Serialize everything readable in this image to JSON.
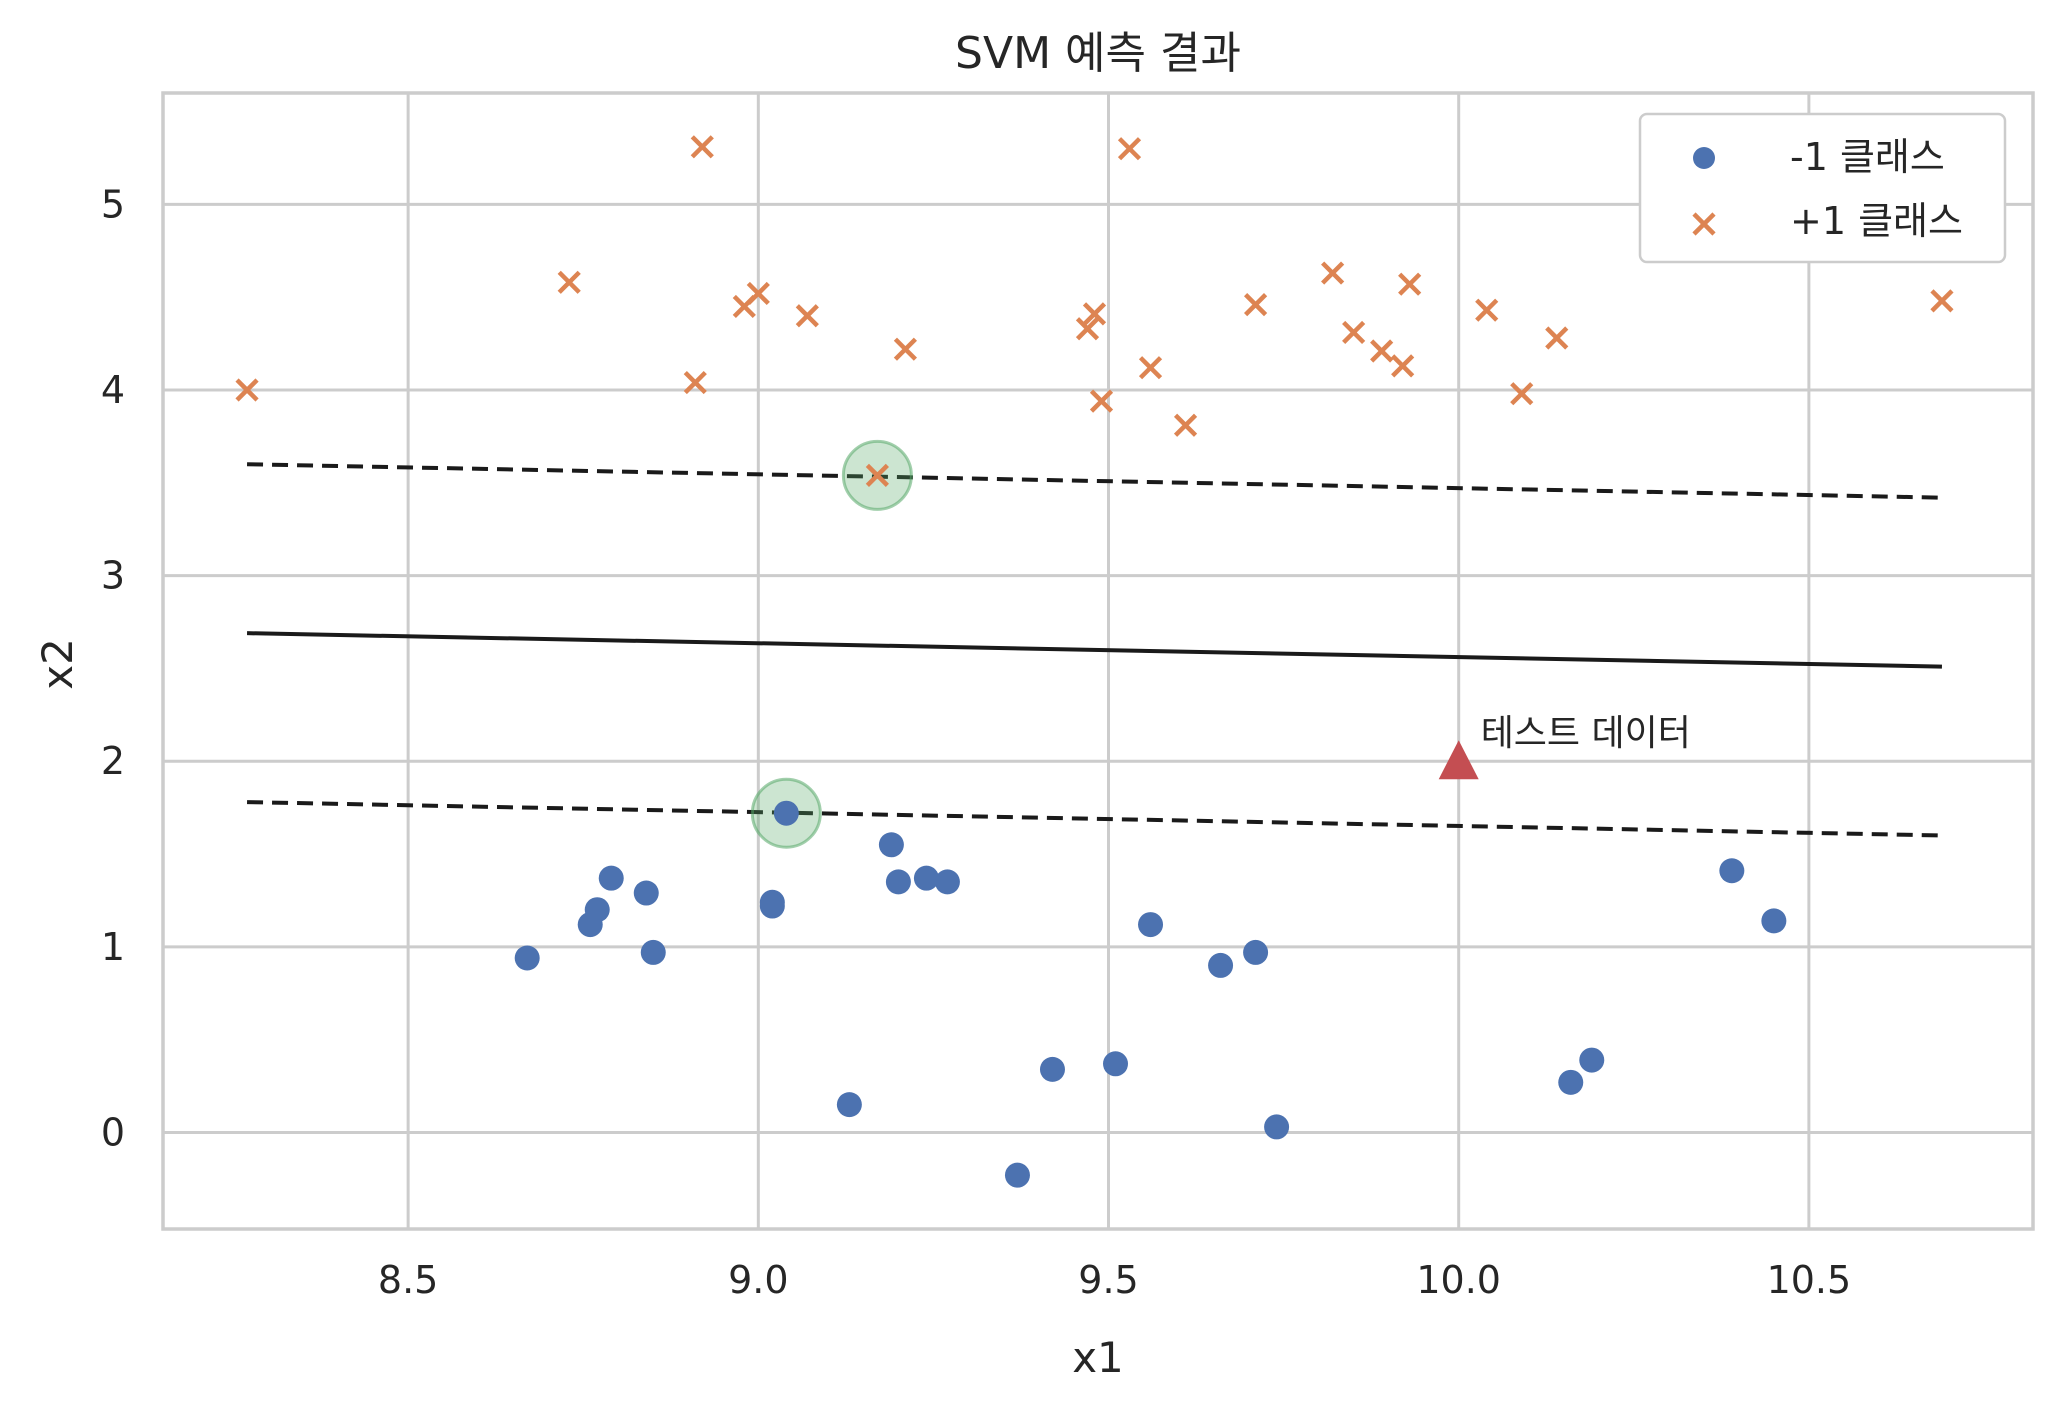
{
  "chart_data": {
    "type": "scatter",
    "title": "SVM 예측 결과",
    "xlabel": "x1",
    "ylabel": "x2",
    "xlim": [
      8.15,
      10.82
    ],
    "ylim": [
      -0.52,
      5.6
    ],
    "xticks": [
      8.5,
      9.0,
      9.5,
      10.0,
      10.5
    ],
    "xtick_labels": [
      "8.5",
      "9.0",
      "9.5",
      "10.0",
      "10.5"
    ],
    "yticks": [
      0,
      1,
      2,
      3,
      4,
      5
    ],
    "ytick_labels": [
      "0",
      "1",
      "2",
      "3",
      "4",
      "5"
    ],
    "grid": true,
    "legend_position": "upper-right",
    "colors": {
      "neg": "#4c72b0",
      "pos": "#dd8452",
      "test": "#c44e52",
      "line": "#1a1a1a",
      "sv": "#55a868"
    },
    "series": [
      {
        "name": "-1 클래스",
        "marker": "circle",
        "points": [
          [
            8.67,
            0.94
          ],
          [
            8.76,
            1.12
          ],
          [
            8.77,
            1.2
          ],
          [
            8.79,
            1.37
          ],
          [
            8.84,
            1.29
          ],
          [
            8.85,
            0.97
          ],
          [
            9.02,
            1.24
          ],
          [
            9.02,
            1.22
          ],
          [
            9.04,
            1.72
          ],
          [
            9.13,
            0.15
          ],
          [
            9.19,
            1.55
          ],
          [
            9.2,
            1.35
          ],
          [
            9.24,
            1.37
          ],
          [
            9.27,
            1.35
          ],
          [
            9.37,
            -0.23
          ],
          [
            9.42,
            0.34
          ],
          [
            9.51,
            0.37
          ],
          [
            9.56,
            1.12
          ],
          [
            9.66,
            0.9
          ],
          [
            9.71,
            0.97
          ],
          [
            9.74,
            0.03
          ],
          [
            10.16,
            0.27
          ],
          [
            10.19,
            0.39
          ],
          [
            10.39,
            1.41
          ],
          [
            10.45,
            1.14
          ]
        ]
      },
      {
        "name": "+1 클래스",
        "marker": "x",
        "points": [
          [
            8.27,
            4.0
          ],
          [
            8.73,
            4.58
          ],
          [
            8.91,
            4.04
          ],
          [
            8.92,
            5.31
          ],
          [
            8.98,
            4.45
          ],
          [
            9.0,
            4.52
          ],
          [
            9.07,
            4.4
          ],
          [
            9.17,
            3.54
          ],
          [
            9.21,
            4.22
          ],
          [
            9.47,
            4.33
          ],
          [
            9.48,
            4.41
          ],
          [
            9.49,
            3.94
          ],
          [
            9.53,
            5.3
          ],
          [
            9.56,
            4.12
          ],
          [
            9.61,
            3.81
          ],
          [
            9.71,
            4.46
          ],
          [
            9.82,
            4.63
          ],
          [
            9.85,
            4.31
          ],
          [
            9.89,
            4.21
          ],
          [
            9.92,
            4.13
          ],
          [
            9.93,
            4.57
          ],
          [
            10.04,
            4.43
          ],
          [
            10.09,
            3.98
          ],
          [
            10.14,
            4.28
          ],
          [
            10.69,
            4.48
          ]
        ]
      }
    ],
    "support_vectors": [
      [
        9.17,
        3.54
      ],
      [
        9.04,
        1.72
      ]
    ],
    "decision_boundary": {
      "x": [
        8.27,
        10.69
      ],
      "y": [
        2.69,
        2.51
      ]
    },
    "margin_upper": {
      "x": [
        8.27,
        10.69
      ],
      "y": [
        3.6,
        3.42
      ]
    },
    "margin_lower": {
      "x": [
        8.27,
        10.69
      ],
      "y": [
        1.78,
        1.6
      ]
    },
    "test_point": {
      "x": 10.0,
      "y": 2.0,
      "label": "테스트 데이터"
    }
  }
}
